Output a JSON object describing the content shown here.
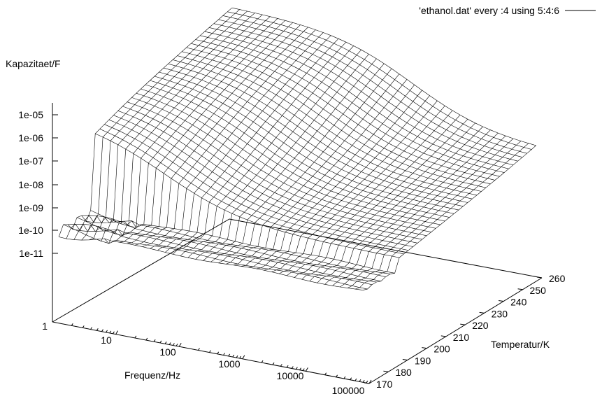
{
  "chart_data": {
    "type": "surface",
    "legend": "'ethanol.dat' every :4 using 5:4:6",
    "zlabel": "Kapazitaet/F",
    "xlabel": "Frequenz/Hz",
    "ylabel": "Temperatur/K",
    "z_ticks": [
      "1e-05",
      "1e-06",
      "1e-07",
      "1e-08",
      "1e-09",
      "1e-10",
      "1e-11"
    ],
    "z_axis_base_label": "1",
    "x_ticks": [
      "10",
      "100",
      "1000",
      "10000",
      "100000"
    ],
    "y_ticks": [
      "170",
      "180",
      "190",
      "200",
      "210",
      "220",
      "230",
      "240",
      "250",
      "260"
    ],
    "x_scale": "log",
    "z_scale": "log",
    "xlim": [
      1,
      100000
    ],
    "ylim": [
      165,
      262
    ],
    "zlim": [
      1,
      1e-11
    ],
    "surface_summary": {
      "low_temperature_plateau": "≈1e-10 F across all frequencies",
      "step_temperature_K": 185,
      "high_temperature_low_frequency_peak": "≈1e-05 F",
      "high_temperature_high_frequency": "≈1e-08 F"
    }
  }
}
